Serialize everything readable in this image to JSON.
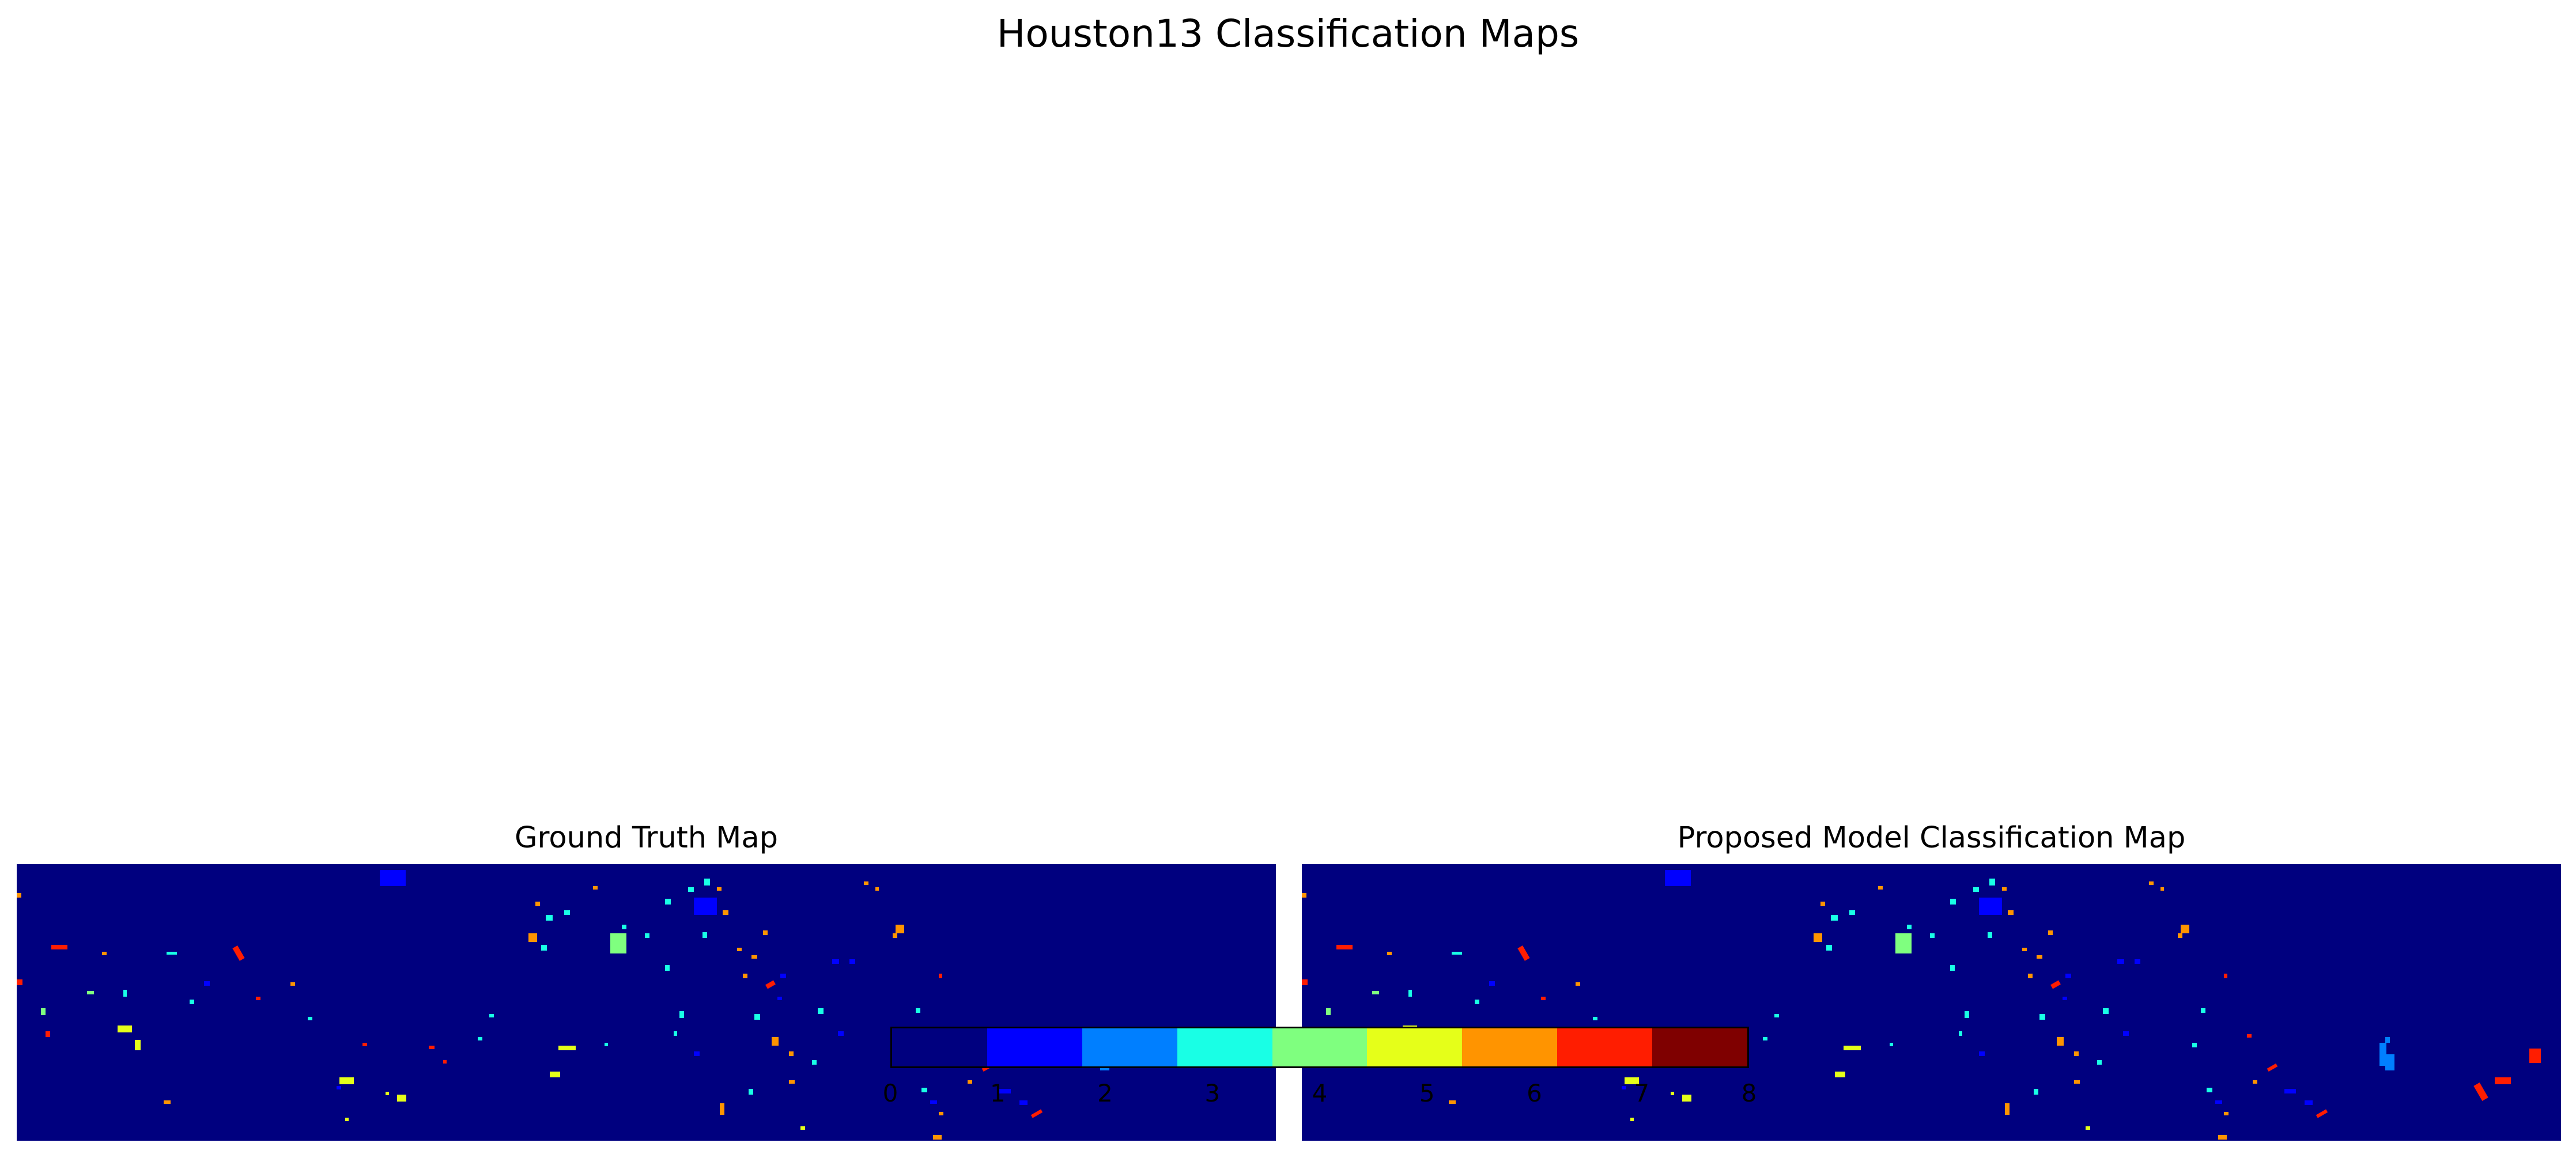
{
  "figure": {
    "title": "Houston13 Classification Maps"
  },
  "chart_data": [
    {
      "type": "heatmap",
      "title": "Ground Truth Map",
      "background_class": 0,
      "colormap": "jet",
      "grid": false,
      "axes_visible": false
    },
    {
      "type": "heatmap",
      "title": "Proposed Model Classification Map",
      "background_class": 0,
      "colormap": "jet",
      "grid": false,
      "axes_visible": false
    }
  ],
  "colorbar": {
    "orientation": "horizontal",
    "position": "bottom-center, overlapping maps",
    "range": [
      0,
      8
    ],
    "ticks": [
      "0",
      "1",
      "2",
      "3",
      "4",
      "5",
      "6",
      "7",
      "8"
    ],
    "class_colors": [
      "#00007f",
      "#0000ff",
      "#007fff",
      "#19ffe5",
      "#7fff7f",
      "#e5ff19",
      "#ff9400",
      "#ff1d00",
      "#7f0000"
    ]
  }
}
